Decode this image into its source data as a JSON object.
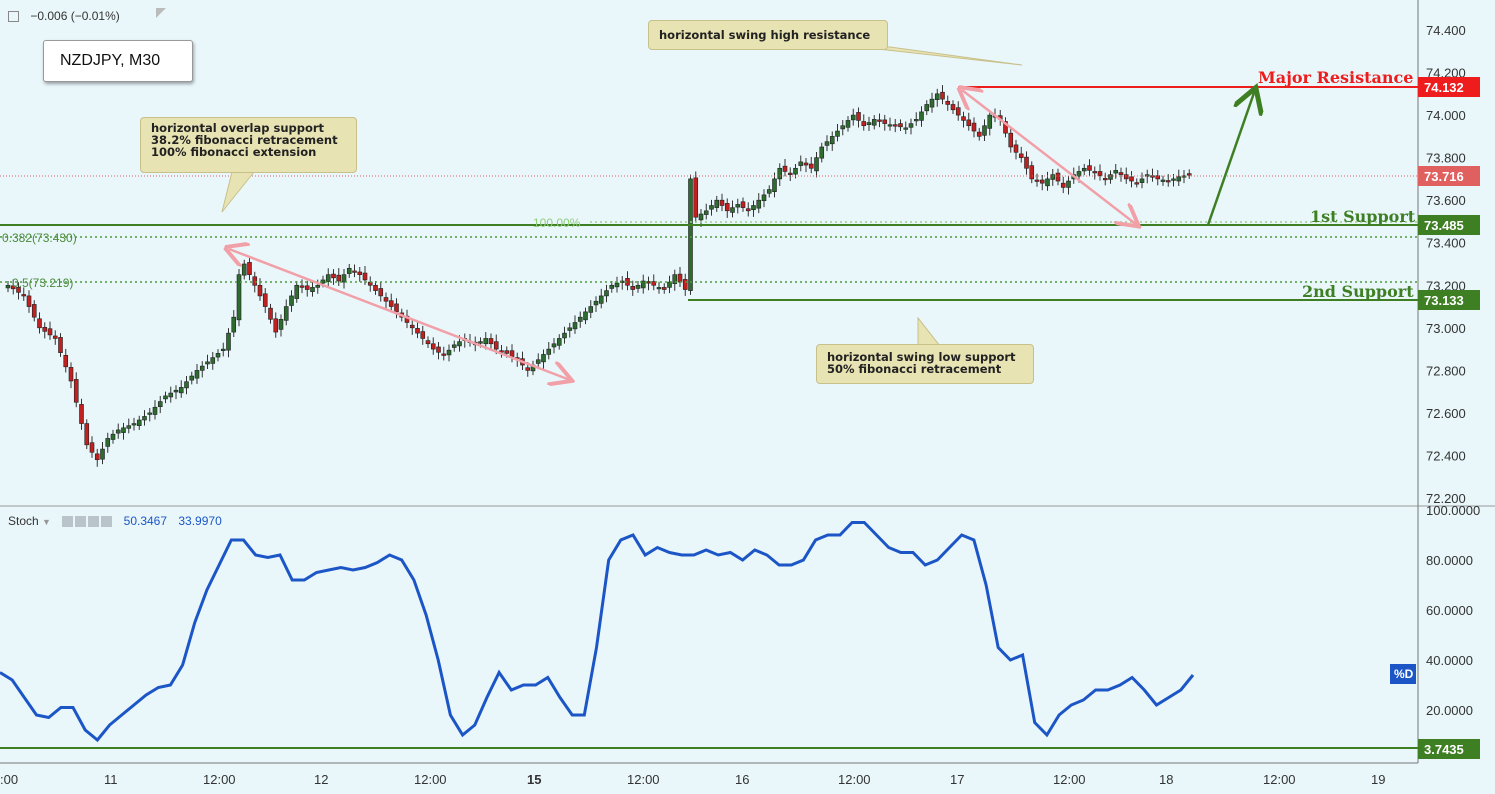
{
  "header": {
    "change": "−0.006 (−0.01%)"
  },
  "symbol": "NZDJPY, M30",
  "notes": {
    "overlap_support": "horizontal overlap support\n38.2% fibonacci retracement\n100% fibonacci extension",
    "swing_high": "horizontal swing high resistance",
    "swing_low": "horizontal swing low support\n50% fibonacci retracement"
  },
  "levels": {
    "major_resistance": {
      "label": "Major Resistance",
      "value": "74.132",
      "color": "#ee1c1c"
    },
    "first_support": {
      "label": "1st Support",
      "value": "73.485",
      "color": "#3f7f24"
    },
    "second_support": {
      "label": "2nd Support",
      "value": "73.133",
      "color": "#3f7f24"
    },
    "last_price": {
      "value": "73.716",
      "color": "#e06060"
    }
  },
  "fib": {
    "f382": "0.382(73.430)",
    "f05": "0.5(73.219)",
    "ext100": "100.00%"
  },
  "stoch": {
    "name": "Stoch",
    "k": "50.3467",
    "d": "33.9970",
    "d_tag": "%D",
    "level_value": "3.7435"
  },
  "chart_data": [
    {
      "type": "candlestick",
      "title": "NZDJPY, M30",
      "y_ticks": [
        "74.400",
        "74.200",
        "74.000",
        "73.800",
        "73.600",
        "73.400",
        "73.200",
        "73.000",
        "72.800",
        "72.600",
        "72.400",
        "72.200"
      ],
      "ylim": [
        72.15,
        74.5
      ],
      "x_ticks": [
        ":00",
        "11",
        "12:00",
        "12",
        "12:00",
        "15",
        "12:00",
        "16",
        "12:00",
        "17",
        "12:00",
        "18",
        "12:00",
        "19"
      ],
      "close_path": [
        [
          0,
          73.2
        ],
        [
          3,
          73.15
        ],
        [
          6,
          73.0
        ],
        [
          9,
          72.95
        ],
        [
          12,
          72.75
        ],
        [
          15,
          72.45
        ],
        [
          17,
          72.38
        ],
        [
          19,
          72.48
        ],
        [
          21,
          72.52
        ],
        [
          24,
          72.55
        ],
        [
          27,
          72.6
        ],
        [
          30,
          72.68
        ],
        [
          33,
          72.72
        ],
        [
          36,
          72.8
        ],
        [
          39,
          72.86
        ],
        [
          41,
          72.9
        ],
        [
          43,
          73.05
        ],
        [
          44,
          73.25
        ],
        [
          45,
          73.3
        ],
        [
          47,
          73.2
        ],
        [
          49,
          73.1
        ],
        [
          51,
          72.98
        ],
        [
          53,
          73.1
        ],
        [
          55,
          73.2
        ],
        [
          57,
          73.18
        ],
        [
          59,
          73.2
        ],
        [
          61,
          73.25
        ],
        [
          63,
          73.22
        ],
        [
          65,
          73.28
        ],
        [
          67,
          73.25
        ],
        [
          69,
          73.2
        ],
        [
          71,
          73.15
        ],
        [
          73,
          73.1
        ],
        [
          75,
          73.05
        ],
        [
          77,
          73.0
        ],
        [
          79,
          72.95
        ],
        [
          81,
          72.9
        ],
        [
          83,
          72.87
        ],
        [
          85,
          72.92
        ],
        [
          87,
          72.95
        ],
        [
          89,
          72.92
        ],
        [
          91,
          72.95
        ],
        [
          93,
          72.9
        ],
        [
          95,
          72.88
        ],
        [
          97,
          72.85
        ],
        [
          99,
          72.8
        ],
        [
          101,
          72.85
        ],
        [
          103,
          72.9
        ],
        [
          105,
          72.95
        ],
        [
          107,
          73.0
        ],
        [
          109,
          73.05
        ],
        [
          111,
          73.1
        ],
        [
          113,
          73.15
        ],
        [
          115,
          73.2
        ],
        [
          117,
          73.22
        ],
        [
          119,
          73.18
        ],
        [
          121,
          73.22
        ],
        [
          123,
          73.2
        ],
        [
          125,
          73.18
        ],
        [
          127,
          73.25
        ],
        [
          129,
          73.18
        ],
        [
          130,
          73.7
        ],
        [
          131,
          73.52
        ],
        [
          133,
          73.55
        ],
        [
          135,
          73.6
        ],
        [
          137,
          73.55
        ],
        [
          139,
          73.58
        ],
        [
          141,
          73.55
        ],
        [
          143,
          73.6
        ],
        [
          145,
          73.65
        ],
        [
          147,
          73.75
        ],
        [
          149,
          73.72
        ],
        [
          151,
          73.78
        ],
        [
          153,
          73.75
        ],
        [
          155,
          73.85
        ],
        [
          157,
          73.9
        ],
        [
          159,
          73.95
        ],
        [
          161,
          74.0
        ],
        [
          163,
          73.95
        ],
        [
          165,
          73.98
        ],
        [
          167,
          73.96
        ],
        [
          169,
          73.95
        ],
        [
          171,
          73.94
        ],
        [
          173,
          73.98
        ],
        [
          175,
          74.05
        ],
        [
          177,
          74.1
        ],
        [
          179,
          74.05
        ],
        [
          181,
          74.0
        ],
        [
          183,
          73.95
        ],
        [
          185,
          73.9
        ],
        [
          187,
          74.0
        ],
        [
          189,
          73.98
        ],
        [
          191,
          73.85
        ],
        [
          193,
          73.8
        ],
        [
          195,
          73.7
        ],
        [
          197,
          73.68
        ],
        [
          199,
          73.72
        ],
        [
          201,
          73.66
        ],
        [
          203,
          73.72
        ],
        [
          205,
          73.75
        ],
        [
          207,
          73.73
        ],
        [
          209,
          73.7
        ],
        [
          211,
          73.74
        ],
        [
          213,
          73.7
        ],
        [
          215,
          73.68
        ],
        [
          217,
          73.72
        ],
        [
          219,
          73.7
        ],
        [
          221,
          73.69
        ],
        [
          223,
          73.71
        ],
        [
          225,
          73.72
        ]
      ]
    },
    {
      "type": "line",
      "title": "Stoch",
      "series": [
        {
          "name": "%D",
          "values": [
            35,
            32,
            25,
            18,
            17,
            21,
            21,
            12,
            8,
            14,
            18,
            22,
            26,
            29,
            30,
            38,
            55,
            68,
            78,
            88,
            88,
            82,
            81,
            82,
            72,
            72,
            75,
            76,
            77,
            76,
            77,
            79,
            82,
            80,
            72,
            58,
            40,
            18,
            10,
            14,
            25,
            35,
            28,
            30,
            30,
            33,
            25,
            18,
            18,
            45,
            80,
            88,
            90,
            82,
            85,
            83,
            82,
            82,
            84,
            82,
            83,
            80,
            84,
            82,
            78,
            78,
            80,
            88,
            90,
            90,
            95,
            95,
            90,
            85,
            83,
            83,
            78,
            80,
            85,
            90,
            88,
            70,
            45,
            40,
            42,
            15,
            10,
            18,
            22,
            24,
            28,
            28,
            30,
            33,
            28,
            22,
            25,
            28,
            34
          ]
        }
      ],
      "y_ticks": [
        "100.0000",
        "80.0000",
        "60.0000",
        "40.0000",
        "20.0000"
      ],
      "ylim": [
        0,
        100
      ]
    }
  ],
  "axis_colors": {
    "candle_up": "#2e6b2e",
    "candle_down": "#c02020",
    "stoch_line": "#1c56c6",
    "arrow_pink": "#f2a0a8",
    "arrow_green": "#3f7f24"
  }
}
